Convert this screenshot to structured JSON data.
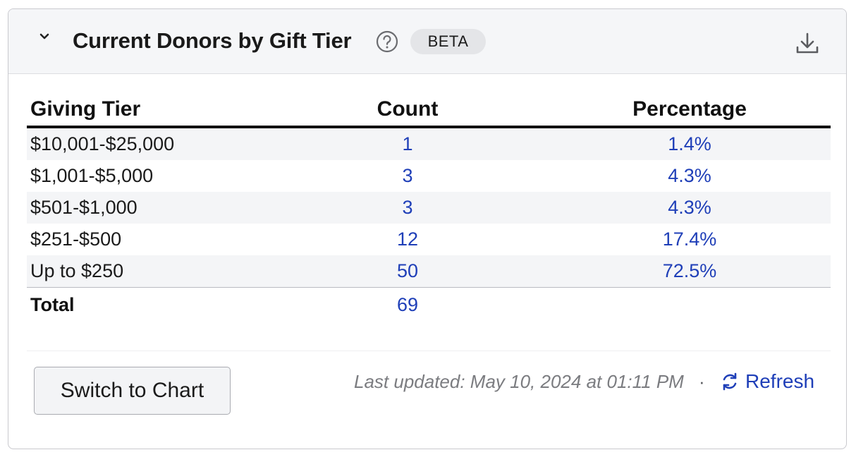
{
  "header": {
    "title": "Current Donors by Gift Tier",
    "badge": "BETA",
    "icons": {
      "collapse": "chevron-down-icon",
      "help": "question-circle-icon",
      "download": "download-icon"
    }
  },
  "table": {
    "columns": [
      "Giving Tier",
      "Count",
      "Percentage"
    ],
    "rows": [
      {
        "tier": "$10,001-$25,000",
        "count": "1",
        "percentage": "1.4%"
      },
      {
        "tier": "$1,001-$5,000",
        "count": "3",
        "percentage": "4.3%"
      },
      {
        "tier": "$501-$1,000",
        "count": "3",
        "percentage": "4.3%"
      },
      {
        "tier": "$251-$500",
        "count": "12",
        "percentage": "17.4%"
      },
      {
        "tier": "Up to $250",
        "count": "50",
        "percentage": "72.5%"
      }
    ],
    "total": {
      "label": "Total",
      "count": "69"
    }
  },
  "footer": {
    "switch_label": "Switch to Chart",
    "last_updated": "Last updated: May 10, 2024 at 01:11 PM",
    "separator": "·",
    "refresh_label": "Refresh",
    "refresh_icon": "refresh-icon"
  },
  "colors": {
    "link": "#1f3fb8",
    "header_bg": "#f5f6f8",
    "badge_bg": "#e4e5e8"
  }
}
